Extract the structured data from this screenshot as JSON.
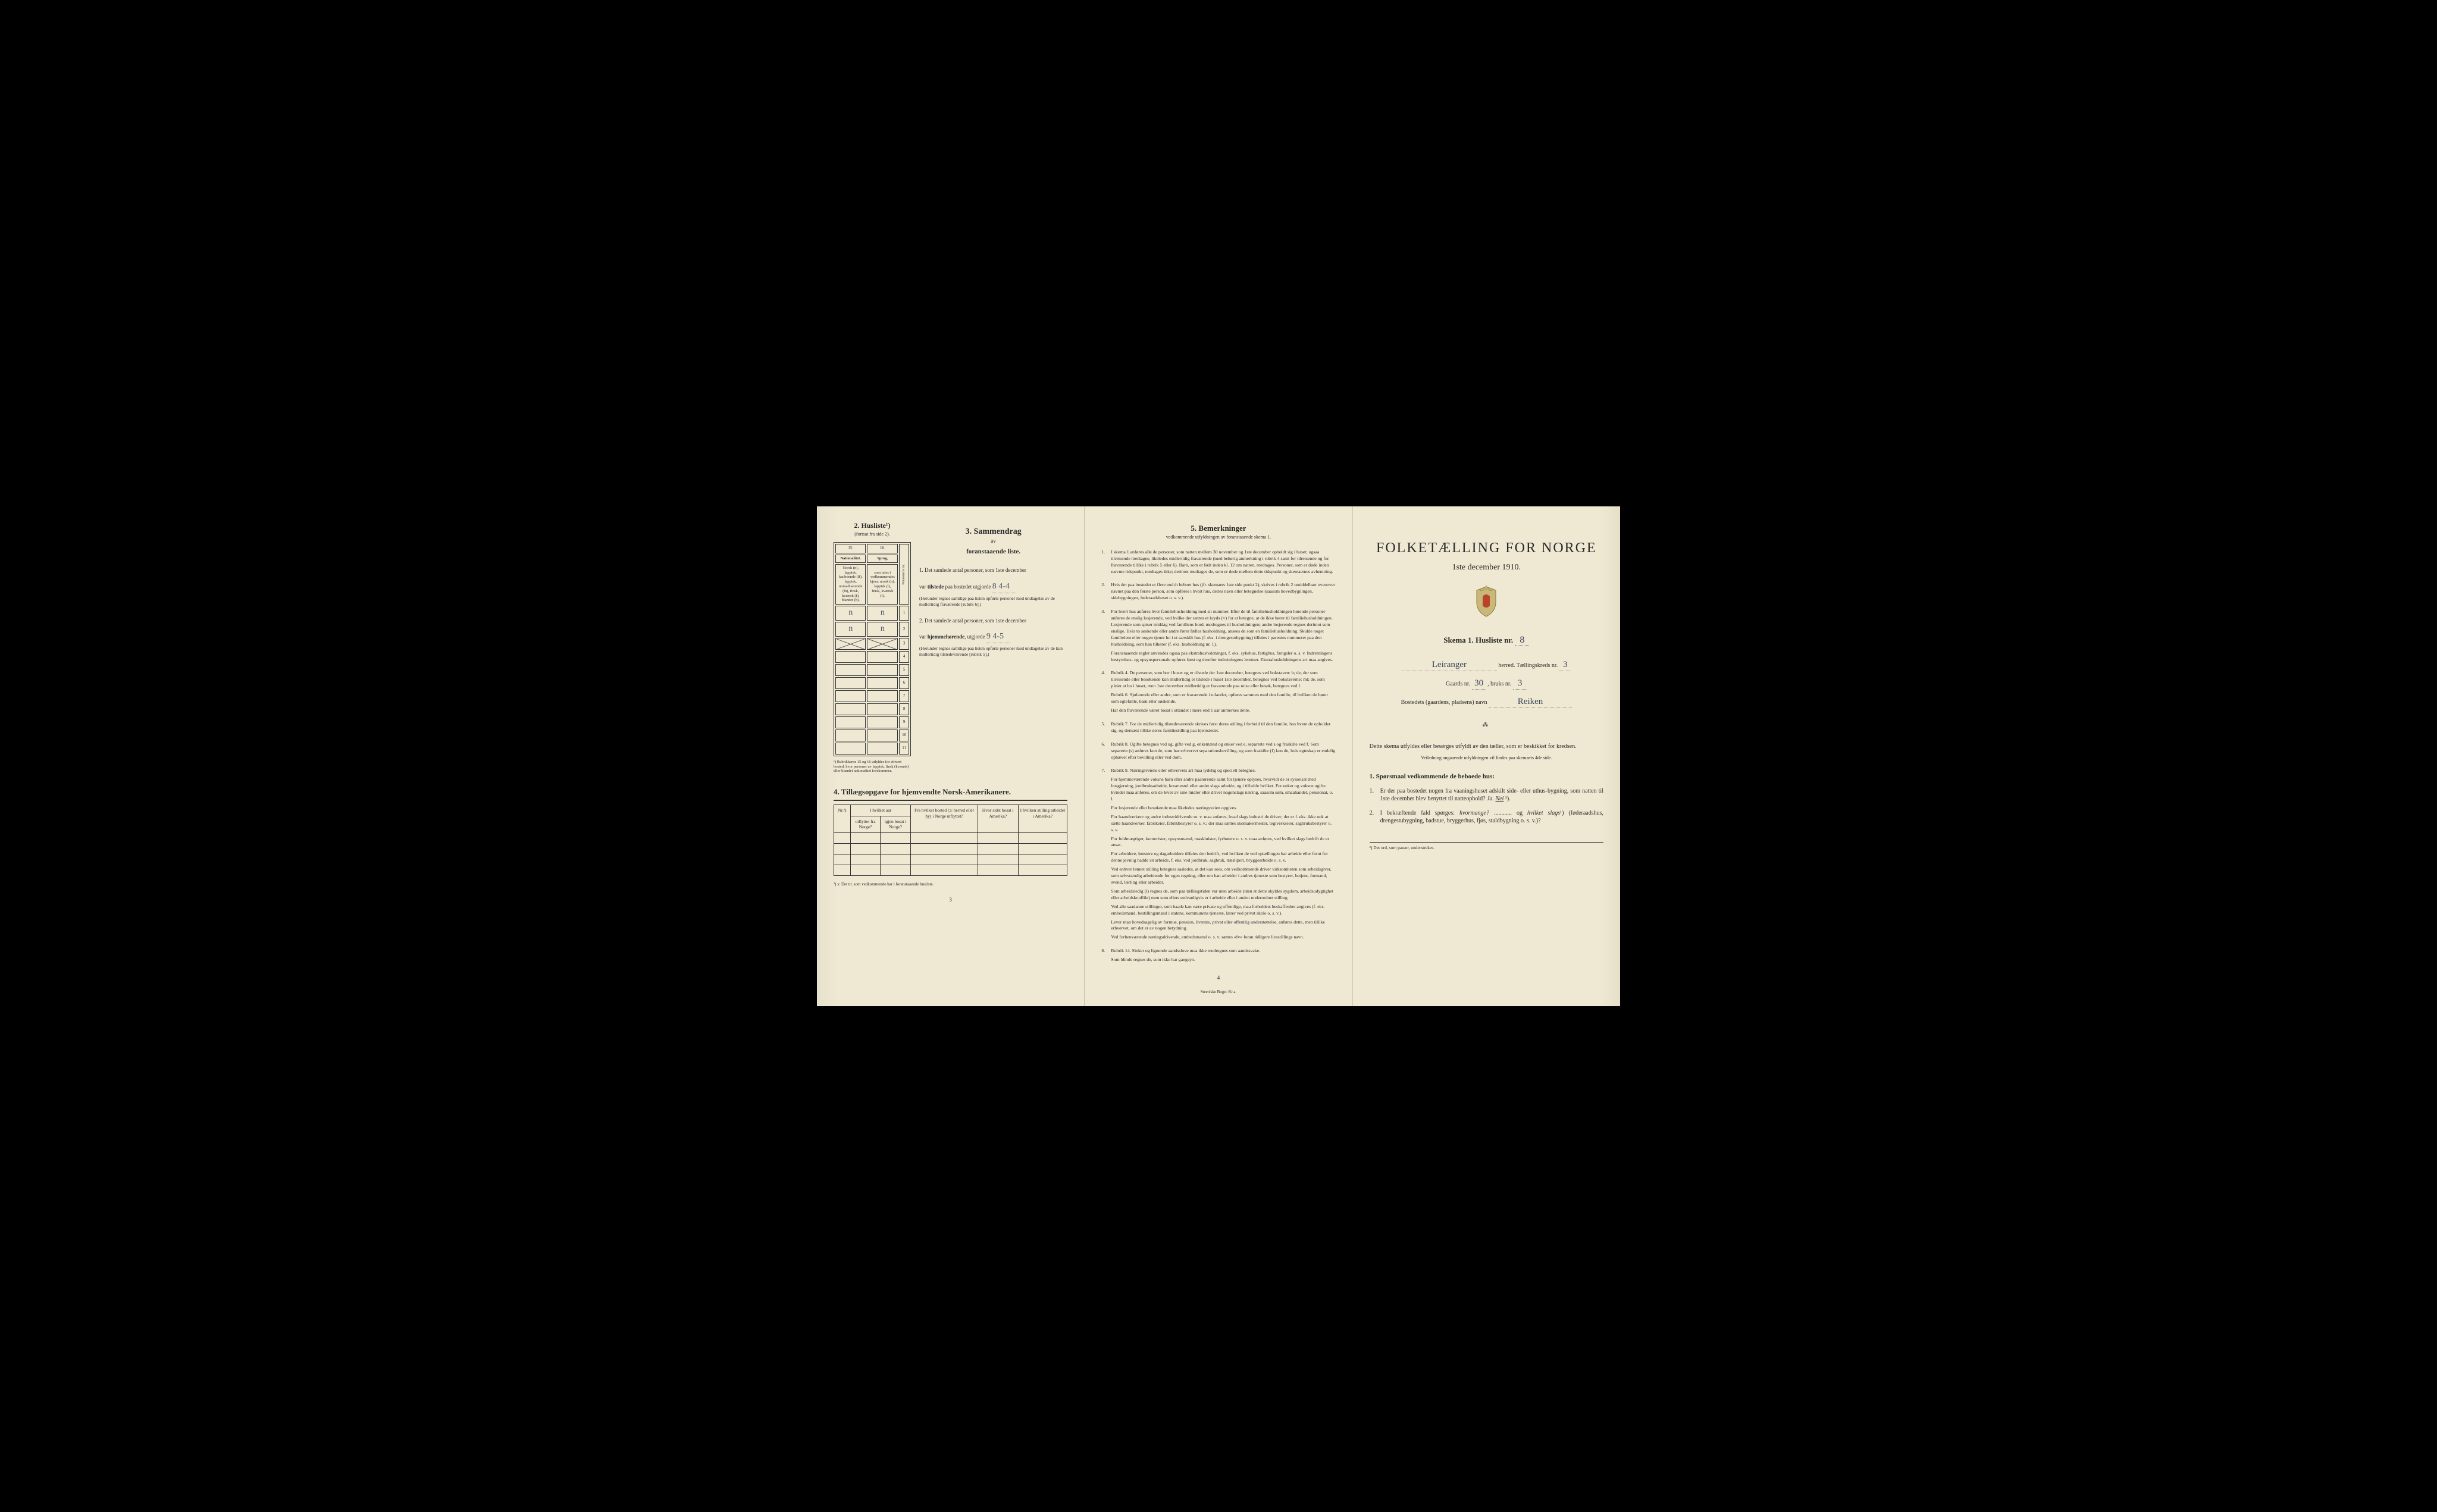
{
  "document": {
    "background_color": "#efe8d3",
    "text_color": "#2a2a2a",
    "handwriting_color": "#4a5568",
    "border_color": "#333333"
  },
  "page1": {
    "sec2": {
      "header": "2.  Husliste¹)",
      "subheader": "(fortsat fra side 2).",
      "col15": "15.",
      "col16": "16.",
      "col15_label": "Nationalitet.",
      "col15_desc": "Norsk (n), lappisk, fastboende (lf), lappisk, nomadiserende (ln), finsk, kvænsk (f), blandet (b).",
      "col16_label": "Sprog,",
      "col16_desc": "som tales i vedkommendes hjem: norsk (n), lappisk (l), finsk, kvænsk (f).",
      "col_pers": "Personens nr.",
      "rows": [
        {
          "c15": "n",
          "c16": "n",
          "nr": "1"
        },
        {
          "c15": "n",
          "c16": "n",
          "nr": "2"
        },
        {
          "c15": "",
          "c16": "",
          "nr": "3",
          "crossed": true
        },
        {
          "c15": "",
          "c16": "",
          "nr": "4"
        },
        {
          "c15": "",
          "c16": "",
          "nr": "5"
        },
        {
          "c15": "",
          "c16": "",
          "nr": "6"
        },
        {
          "c15": "",
          "c16": "",
          "nr": "7"
        },
        {
          "c15": "",
          "c16": "",
          "nr": "8"
        },
        {
          "c15": "",
          "c16": "",
          "nr": "9"
        },
        {
          "c15": "",
          "c16": "",
          "nr": "10"
        },
        {
          "c15": "",
          "c16": "",
          "nr": "11"
        }
      ],
      "rubnote": "¹) Rubrikkerne 15 og 16 utfyldes for ethvert bosted, hvor personer av lappisk, finsk (kvænsk) eller blandet nationalitet forekommer."
    },
    "sec3": {
      "header": "3.  Sammendrag",
      "sub": "av",
      "sub2": "foranstaaende liste.",
      "item1_num": "1.",
      "item1_text": "Det samlede antal personer, som 1ste december",
      "item1_line2a": "var ",
      "item1_line2b": "tilstede",
      "item1_line2c": " paa bostedet utgjorde",
      "item1_val": "8  4-4",
      "item1_note": "(Herunder regnes samtlige paa listen opførte personer med undtagelse av de midlertidig fraværende [rubrik 6].)",
      "item2_num": "2.",
      "item2_text": "Det samlede antal personer, som 1ste december",
      "item2_line2a": "var ",
      "item2_line2b": "hjemmehørende",
      "item2_line2c": ", utgjorde",
      "item2_val": "9  4-5",
      "item2_note": "(Herunder regnes samtlige paa listen opførte personer med undtagelse av de kun midlertidig tilstedeværende [rubrik 5].)"
    },
    "sec4": {
      "header": "4.  Tillægsopgave for hjemvendte Norsk-Amerikanere.",
      "cols": [
        "Nr.²)",
        "I hvilket aar",
        "Fra hvilket bosted (ɔ: herred eller by) i Norge utflyttet?",
        "Hvor sidst bosat i Amerika?",
        "I hvilken stilling arbeidet i Amerika?"
      ],
      "subcols": [
        "utflyttet fra Norge?",
        "igjen bosat i Norge?"
      ],
      "footnote": "²) ɔ: Det nr. som vedkommende har i foranstaaende husliste.",
      "pagenum": "3"
    }
  },
  "page2": {
    "sec5": {
      "header": "5.  Bemerkninger",
      "subheader": "vedkommende utfyldningen av foranstaaende skema 1.",
      "items": [
        {
          "n": "1.",
          "t": "I skema 1 anføres alle de personer, som natten mellem 30 november og 1ste december opholdt sig i huset; ogsaa tilreisende medtages; likeledes midlertidig fraværende (med behørig anmerkning i rubrik 4 samt for tilreisende og for fraværende tillike i rubrik 5 eller 6). Barn, som er født inden kl. 12 om natten, medtages. Personer, som er døde inden nævnte tidspunkt, medtages ikke; derimot medtages de, som er døde mellem dette tidspunkt og skemaernes avhentning."
        },
        {
          "n": "2.",
          "t": "Hvis der paa bostedet er flere end ét beboet hus (jfr. skemaets 1ste side punkt 2), skrives i rubrik 2 umiddelbart ovenover navnet paa den første person, som opføres i hvert hus, dettes navn eller betegnelse (saasom hovedbygningen, sidebygningen, føderaadshuset o. s. v.)."
        },
        {
          "n": "3.",
          "t": "For hvert hus anføres hver familiehusholdning med sit nummer. Efter de til familiehusholdningen hørende personer anføres de enslig losjerende, ved hvilke der sættes et kryds (×) for at betegne, at de ikke hører til familiehusholdningen. Losjerende som spiser middag ved familiens bord, medregnes til husholdningen; andre losjerende regnes derimot som enslige. Hvis to søskende eller andre fører fælles husholdning, ansees de som en familiehusholdning. Skulde noget familielem eller nogen tjener bo i et særskilt hus (f. eks. i drengestubygning) tilføies i parentes nummeret paa den husholdning, som han tilhører (f. eks. husholdning nr. 1).\nForanstaaende regler anvendes ogsaa paa ekstrahusholdninger, f. eks. sykehus, fattighus, fængsler o. s. v. Indretningens bestyrelses- og opsynspersonale opføres først og derefter indretningens lemmer. Ekstrahusholdningens art maa angives."
        },
        {
          "n": "4.",
          "t": "Rubrik 4. De personer, som bor i huset og er tilstede der 1ste december, betegnes ved bokstaven: b; de, der som tilreisende eller besøkende kun midlertidig er tilstede i huset 1ste december, betegnes ved bokstaverne: mt; de, som pleier at bo i huset, men 1ste december midlertidig er fraværende paa reise eller besøk, betegnes ved f.\nRubrik 6. Sjøfarende eller andre, som er fraværende i utlandet, opføres sammen med den familie, til hvilken de hører som egtefælle, barn eller søskende.\nHar den fraværende været bosat i utlandet i mere end 1 aar anmerkes dette."
        },
        {
          "n": "5.",
          "t": "Rubrik 7. For de midlertidig tilstedeværende skrives først deres stilling i forhold til den familie, hos hvem de opholder sig, og dernæst tillike deres familiestilling paa hjemstedet."
        },
        {
          "n": "6.",
          "t": "Rubrik 8. Ugifte betegnes ved ug, gifte ved g, enkemænd og enker ved e, separerte ved s og fraskilte ved f. Som separerte (s) anføres kun de, som har erhvervet separationsbevilling, og som fraskilte (f) kun de, hvis egteskap er endelig ophævet efter bevilling eller ved dom."
        },
        {
          "n": "7.",
          "t": "Rubrik 9. Næringsveiens eller erhvervets art maa tydelig og specielt betegnes.\nFor hjemmeværende voksne barn eller andre paarørende samt for tjenere oplyses, hvorvidt de er sysselsat med husgjerning, jordbruksarbeide, kreaturstel eller andet slags arbeide, og i tilfælde hvilket. For enker og voksne ugifte kvinder maa anføres, om de lever av sine midler eller driver nogenslags næring, saasom søm, smaahandel, pensionat, o. l.\nFor losjerende eller besøkende maa likeledes næringsveien opgives.\nFor haandverkere og andre industridrivende m. v. maa anføres, hvad slags industri de driver; det er f. eks. ikke nok at sætte haandverker, fabrikeier, fabrikbestyrer o. s. v.; der maa sættes skomakermester, teglverkseier, sagbruksbestyrer o. s. v.\nFor fuldmægtiger, kontorister, opsynsmænd, maskinister, fyrbøtere o. s. v. maa anføres, ved hvilket slags bedrift de er ansat.\nFor arbeidere, lønstere og dagarbeidere tilføies den bedrift, ved hvilken de ved optællingen har arbeide eller forut for denne jevnlig hadde sit arbeide, f. eks. ved jordbruk, sagbruk, træsliperi, bryggearbeide o. s. v.\nVed enhver lønnet stilling betegnes saaledes, at det kan sees, om vedkommende driver virksomheten som arbeidsgiver, som selvstændig arbeidende for egen regning, eller om han arbeider i andres tjeneste som bestyrer, betjent, formand, svend, lærling eller arbeider.\nSom arbeidsledig (l) regnes de, som paa tællingstiden var uten arbeide (uten at dette skyldes sygdom, arbeidsudygtighet eller arbeidskonflikt) men som ellers sedvanligvis er i arbeide eller i anden underordnet stilling.\nVed alle saadanne stillinger, som baade kan være private og offentlige, maa forholdets beskaffenhet angives (f. eks. embedsmand, bestillingsmand i statens, kommunens tjeneste, lærer ved privat skole o. s. v.).\nLever man hovedsagelig av formue, pension, livrente, privat eller offentlig understøttelse, anføres dette, men tillike erhvervet, om det er av nogen betydning.\nVed forhenværende næringsdrivende, embedsmænd o. s. v. sættes «fv» foran tidligere livsstillings navn."
        },
        {
          "n": "8.",
          "t": "Rubrik 14. Sinker og lignende aandsslove maa ikke medregnes som aandssvake.\nSom blinde regnes de, som ikke har gangsyn."
        }
      ],
      "pagenum": "4",
      "imprint": "Steen'ske Bogtr.  Kr.a."
    }
  },
  "page3": {
    "title": "FOLKETÆLLING FOR NORGE",
    "date": "1ste december 1910.",
    "skema_label": "Skema 1.  Husliste nr.",
    "skema_nr": "8",
    "herred_val": "Leiranger",
    "herred_label": "herred.  Tællingskreds nr.",
    "kreds_nr": "3",
    "gaards_label": "Gaards nr.",
    "gaards_nr": "30",
    "bruks_label": ", bruks nr.",
    "bruks_nr": "3",
    "bosted_label": "Bostedets (gaardens, pladsens) navn",
    "bosted_val": "Reiken",
    "divider": "⁂",
    "instruct": "Dette skema utfyldes eller besørges utfyldt av den tæller, som er beskikket for kredsen.",
    "instruct_small": "Veiledning angaaende utfyldningen vil findes paa skemaets 4de side.",
    "q_header": "1. Spørsmaal vedkommende de beboede hus:",
    "q1_n": "1.",
    "q1_t": "Er der paa bostedet nogen fra vaaningshuset adskilt side- eller uthus-bygning, som natten til 1ste december blev benyttet til natteophold?   Ja.   Nei ²).",
    "q2_n": "2.",
    "q2_t": "I bekræftende fald spørges: hvormange? ............ og hvilket slags¹) (føderaadshus, drengestubygning, badstue, bryggerhus, fjøs, staldbygning o. s. v.)?",
    "footnote": "²) Det ord, som passer, understrekes."
  }
}
